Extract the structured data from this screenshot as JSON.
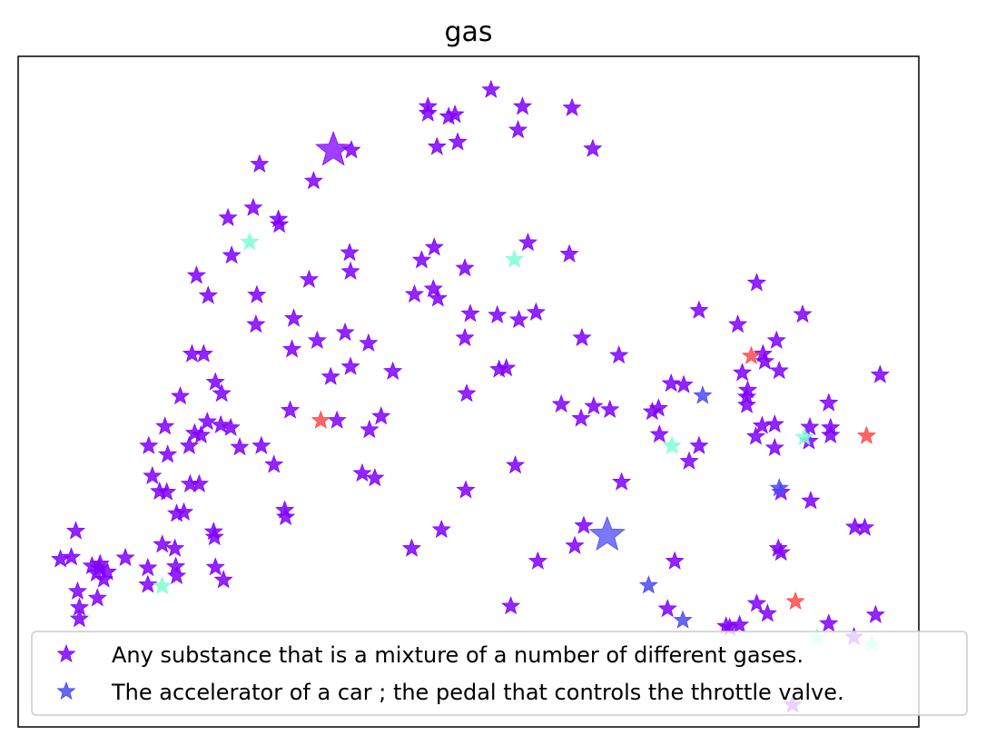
{
  "chart_data": {
    "type": "scatter",
    "title": "gas",
    "xlabel": "",
    "ylabel": "",
    "xlim": [
      0,
      100
    ],
    "ylim": [
      0,
      100
    ],
    "grid": false,
    "ticks_visible": false,
    "marker": "star",
    "legend": {
      "placement": "lower-center",
      "entries": [
        {
          "label": "Any substance that is a mixture of a number of different gases.",
          "color": "#8000ff"
        },
        {
          "label": "The accelerator of a car ; the pedal that controls the throttle valve.",
          "color": "#4b4bf5"
        }
      ]
    },
    "series": [
      {
        "name": "Any substance that is a mixture of a number of different gases.",
        "color": "#8000ff",
        "centroid": [
          35.0,
          86.0
        ],
        "points": [
          [
            52.5,
            95.0
          ],
          [
            45.5,
            92.5
          ],
          [
            45.5,
            91.5
          ],
          [
            47.8,
            91.0
          ],
          [
            48.5,
            91.3
          ],
          [
            56.0,
            92.5
          ],
          [
            61.5,
            92.3
          ],
          [
            55.5,
            89.0
          ],
          [
            48.8,
            87.2
          ],
          [
            46.5,
            86.5
          ],
          [
            63.8,
            86.2
          ],
          [
            37.0,
            86.0
          ],
          [
            26.8,
            83.9
          ],
          [
            32.8,
            81.4
          ],
          [
            23.3,
            75.9
          ],
          [
            26.1,
            77.4
          ],
          [
            28.9,
            75.7
          ],
          [
            29.0,
            74.9
          ],
          [
            46.2,
            71.5
          ],
          [
            36.8,
            70.7
          ],
          [
            23.7,
            70.3
          ],
          [
            56.6,
            72.2
          ],
          [
            61.2,
            70.5
          ],
          [
            44.8,
            69.6
          ],
          [
            49.6,
            68.4
          ],
          [
            36.9,
            67.9
          ],
          [
            19.8,
            67.3
          ],
          [
            32.3,
            66.7
          ],
          [
            82.0,
            66.2
          ],
          [
            44.0,
            64.5
          ],
          [
            46.1,
            65.3
          ],
          [
            21.1,
            64.3
          ],
          [
            26.5,
            64.4
          ],
          [
            46.6,
            63.9
          ],
          [
            50.2,
            61.6
          ],
          [
            53.2,
            61.4
          ],
          [
            57.5,
            61.8
          ],
          [
            55.6,
            60.7
          ],
          [
            30.6,
            60.9
          ],
          [
            75.6,
            62.1
          ],
          [
            87.1,
            61.5
          ],
          [
            79.9,
            60.0
          ],
          [
            26.4,
            60.0
          ],
          [
            36.3,
            58.8
          ],
          [
            33.2,
            57.6
          ],
          [
            49.6,
            58.0
          ],
          [
            62.6,
            58.0
          ],
          [
            38.9,
            57.2
          ],
          [
            84.2,
            57.6
          ],
          [
            30.4,
            56.3
          ],
          [
            82.7,
            55.6
          ],
          [
            19.3,
            55.6
          ],
          [
            20.6,
            55.6
          ],
          [
            66.7,
            55.4
          ],
          [
            36.9,
            53.7
          ],
          [
            82.9,
            54.5
          ],
          [
            53.4,
            53.3
          ],
          [
            54.2,
            53.5
          ],
          [
            41.6,
            53.0
          ],
          [
            84.5,
            53.1
          ],
          [
            95.7,
            52.5
          ],
          [
            34.7,
            52.2
          ],
          [
            80.4,
            52.8
          ],
          [
            21.9,
            51.4
          ],
          [
            72.5,
            51.2
          ],
          [
            73.9,
            51.0
          ],
          [
            22.6,
            49.7
          ],
          [
            49.8,
            49.7
          ],
          [
            81.0,
            50.2
          ],
          [
            18.0,
            49.3
          ],
          [
            80.9,
            49.2
          ],
          [
            90.0,
            48.3
          ],
          [
            60.3,
            48.1
          ],
          [
            63.9,
            47.8
          ],
          [
            65.7,
            47.3
          ],
          [
            70.4,
            47.0
          ],
          [
            71.1,
            47.5
          ],
          [
            30.2,
            47.2
          ],
          [
            80.9,
            48.0
          ],
          [
            40.3,
            46.3
          ],
          [
            62.5,
            46.0
          ],
          [
            35.4,
            45.7
          ],
          [
            22.5,
            45.0
          ],
          [
            21.0,
            45.5
          ],
          [
            16.3,
            44.8
          ],
          [
            23.6,
            44.6
          ],
          [
            19.6,
            43.8
          ],
          [
            20.3,
            43.5
          ],
          [
            39.0,
            44.3
          ],
          [
            82.6,
            44.9
          ],
          [
            84.0,
            45.1
          ],
          [
            71.2,
            43.6
          ],
          [
            87.9,
            44.7
          ],
          [
            90.2,
            44.6
          ],
          [
            14.5,
            41.9
          ],
          [
            19.0,
            41.9
          ],
          [
            24.6,
            41.7
          ],
          [
            27.0,
            41.9
          ],
          [
            75.6,
            41.9
          ],
          [
            81.9,
            43.3
          ],
          [
            87.8,
            42.6
          ],
          [
            90.2,
            43.5
          ],
          [
            84.0,
            41.6
          ],
          [
            16.6,
            40.6
          ],
          [
            74.5,
            39.6
          ],
          [
            28.4,
            39.1
          ],
          [
            55.2,
            39.0
          ],
          [
            38.2,
            37.8
          ],
          [
            14.9,
            37.4
          ],
          [
            39.6,
            37.1
          ],
          [
            19.1,
            36.2
          ],
          [
            20.1,
            36.2
          ],
          [
            15.7,
            35.1
          ],
          [
            16.5,
            35.0
          ],
          [
            67.0,
            36.5
          ],
          [
            49.7,
            35.3
          ],
          [
            84.7,
            35.0
          ],
          [
            88.0,
            33.7
          ],
          [
            17.6,
            31.8
          ],
          [
            18.4,
            32.0
          ],
          [
            29.6,
            32.3
          ],
          [
            29.7,
            31.3
          ],
          [
            6.4,
            29.2
          ],
          [
            21.7,
            29.1
          ],
          [
            21.8,
            28.3
          ],
          [
            62.8,
            30.0
          ],
          [
            47.0,
            29.4
          ],
          [
            92.9,
            29.8
          ],
          [
            94.0,
            29.7
          ],
          [
            16.0,
            27.2
          ],
          [
            17.4,
            26.6
          ],
          [
            43.7,
            26.6
          ],
          [
            61.8,
            27.0
          ],
          [
            84.4,
            26.6
          ],
          [
            84.7,
            26.0
          ],
          [
            4.7,
            25.0
          ],
          [
            5.9,
            25.3
          ],
          [
            11.9,
            25.2
          ],
          [
            8.2,
            24.0
          ],
          [
            9.1,
            24.3
          ],
          [
            9.0,
            23.7
          ],
          [
            14.4,
            23.7
          ],
          [
            17.5,
            23.9
          ],
          [
            21.9,
            23.8
          ],
          [
            57.7,
            24.7
          ],
          [
            72.9,
            24.7
          ],
          [
            8.7,
            22.9
          ],
          [
            9.9,
            23.1
          ],
          [
            17.6,
            22.5
          ],
          [
            9.5,
            22.0
          ],
          [
            14.4,
            21.2
          ],
          [
            6.6,
            20.2
          ],
          [
            22.8,
            21.9
          ],
          [
            8.8,
            19.2
          ],
          [
            54.7,
            18.0
          ],
          [
            72.1,
            17.6
          ],
          [
            82.0,
            18.4
          ],
          [
            6.8,
            17.8
          ],
          [
            83.2,
            16.9
          ],
          [
            95.2,
            16.7
          ],
          [
            6.8,
            16.1
          ],
          [
            78.6,
            15.0
          ],
          [
            80.1,
            15.2
          ],
          [
            90.0,
            15.4
          ],
          [
            79.0,
            14.8
          ],
          [
            92.8,
            13.4
          ],
          [
            86.0,
            3.3
          ]
        ]
      },
      {
        "name": "The accelerator of a car ; the pedal that controls the throttle valve.",
        "color": "#4b4bf5",
        "centroid": [
          65.4,
          28.6
        ],
        "points": [
          [
            76.0,
            49.4
          ],
          [
            84.5,
            35.6
          ],
          [
            70.0,
            21.1
          ],
          [
            73.8,
            15.9
          ]
        ]
      },
      {
        "name": "",
        "color": "#7fffd4",
        "points": [
          [
            25.7,
            72.3
          ],
          [
            55.1,
            69.7
          ],
          [
            72.6,
            41.9
          ],
          [
            87.3,
            43.2
          ],
          [
            16.0,
            21.0
          ],
          [
            88.7,
            13.3
          ],
          [
            94.8,
            12.3
          ]
        ]
      },
      {
        "name": "",
        "color": "#ff4a4a",
        "points": [
          [
            81.4,
            55.3
          ],
          [
            94.2,
            43.4
          ],
          [
            33.6,
            45.7
          ],
          [
            86.3,
            18.7
          ]
        ]
      }
    ]
  }
}
